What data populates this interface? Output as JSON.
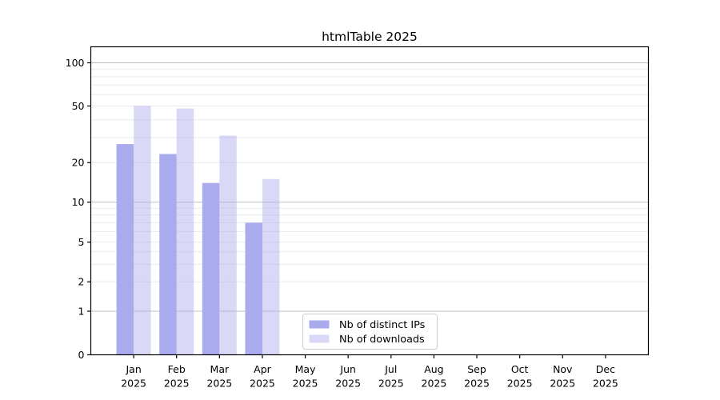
{
  "title": "htmlTable 2025",
  "chart_data": {
    "type": "bar",
    "title": "htmlTable 2025",
    "x": {
      "categories": [
        "Jan",
        "Feb",
        "Mar",
        "Apr",
        "May",
        "Jun",
        "Jul",
        "Aug",
        "Sep",
        "Oct",
        "Nov",
        "Dec"
      ],
      "year": "2025"
    },
    "series": [
      {
        "name": "Nb of distinct IPs",
        "color": "#aaaaee",
        "opacity": 1,
        "values": [
          27,
          23,
          14,
          7,
          null,
          null,
          null,
          null,
          null,
          null,
          null,
          null
        ]
      },
      {
        "name": "Nb of downloads",
        "color": "#aaaaee",
        "opacity": 0.45,
        "values": [
          50,
          48,
          31,
          15,
          null,
          null,
          null,
          null,
          null,
          null,
          null,
          null
        ]
      }
    ],
    "y_axis": {
      "scale": "log-with-zero",
      "tick_values": [
        0,
        1,
        2,
        5,
        10,
        20,
        50,
        100
      ],
      "tick_labels": [
        "0",
        "1",
        "2",
        "5",
        "10",
        "20",
        "50",
        "100"
      ],
      "major_grid_values": [
        1,
        10,
        100
      ],
      "minor_grid_values": [
        2,
        3,
        4,
        5,
        6,
        7,
        8,
        9,
        20,
        30,
        40,
        50,
        60,
        70,
        80,
        90
      ],
      "ylim": [
        0,
        115
      ]
    },
    "legend": {
      "position": "bottom-center",
      "items": [
        "Nb of distinct IPs",
        "Nb of downloads"
      ]
    },
    "grid": true
  },
  "colors": {
    "bar": "#aaaaee",
    "bar_light": "#d9d9f7",
    "grid_major": "#c0c0c0",
    "grid_minor": "#eaeaea",
    "axis": "#000000",
    "legend_border": "#cccccc",
    "background": "#ffffff",
    "text": "#000000"
  }
}
